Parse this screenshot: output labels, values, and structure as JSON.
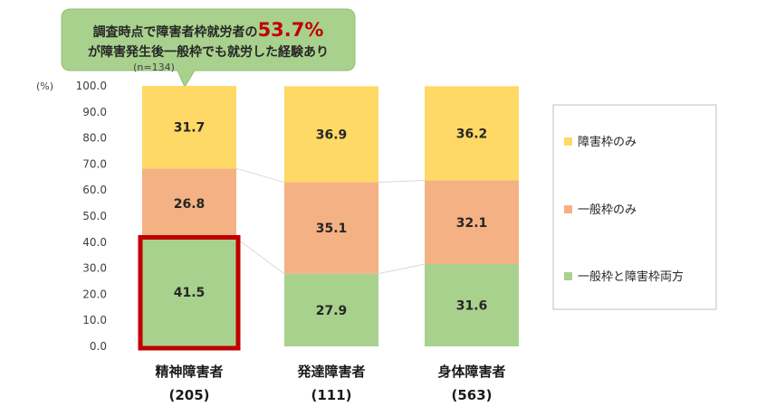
{
  "callout": {
    "line1_prefix": "調査時点で障害者枠就労者の",
    "highlight": "53.7%",
    "line2": "が障害発生後一般枠でも就労した経験あり",
    "n_label": "(n=134)"
  },
  "chart_data": {
    "type": "bar",
    "stacked": true,
    "unit_label": "(%)",
    "ylim": [
      0,
      100
    ],
    "yticks": [
      "0.0",
      "10.0",
      "20.0",
      "30.0",
      "40.0",
      "50.0",
      "60.0",
      "70.0",
      "80.0",
      "90.0",
      "100.0"
    ],
    "categories": [
      {
        "name": "精神障害者",
        "n": "(205)"
      },
      {
        "name": "発達障害者",
        "n": "(111)"
      },
      {
        "name": "身体障害者",
        "n": "(563)"
      }
    ],
    "series": [
      {
        "name": "一般枠と障害枠両方",
        "color": "#a9d18e",
        "values": [
          41.5,
          27.9,
          31.6
        ],
        "labels": [
          "41.5",
          "27.9",
          "31.6"
        ]
      },
      {
        "name": "一般枠のみ",
        "color": "#f4b183",
        "values": [
          26.8,
          35.1,
          32.1
        ],
        "labels": [
          "26.8",
          "35.1",
          "32.1"
        ]
      },
      {
        "name": "障害枠のみ",
        "color": "#ffd966",
        "values": [
          31.7,
          36.9,
          36.2
        ],
        "labels": [
          "31.7",
          "36.9",
          "36.2"
        ]
      }
    ],
    "legend_order": [
      2,
      1,
      0
    ],
    "legend_position": "right",
    "highlight_category": 0,
    "highlight_color": "#c00000",
    "grid": false
  }
}
